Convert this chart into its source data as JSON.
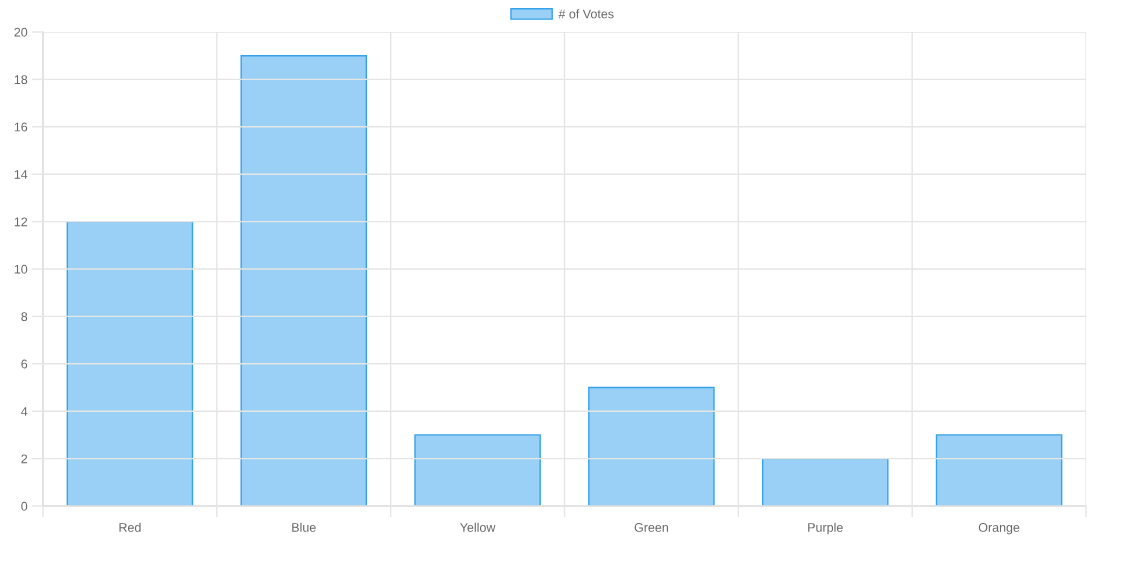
{
  "chart_data": {
    "type": "bar",
    "categories": [
      "Red",
      "Blue",
      "Yellow",
      "Green",
      "Purple",
      "Orange"
    ],
    "series": [
      {
        "name": "# of Votes",
        "color": "#36a2eb",
        "values": [
          12,
          19,
          3,
          5,
          2,
          3
        ]
      }
    ],
    "ylim": [
      0,
      20
    ],
    "yticks": [
      0,
      2,
      4,
      6,
      8,
      10,
      12,
      14,
      16,
      18,
      20
    ],
    "grid": true,
    "legend": "top"
  }
}
